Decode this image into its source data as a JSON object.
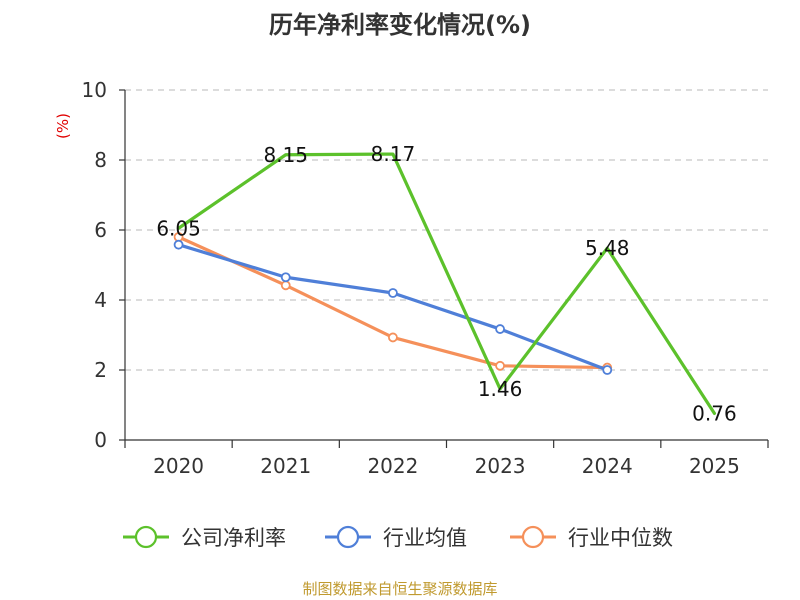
{
  "chart_data": {
    "type": "line",
    "title": "历年净利率变化情况(%)",
    "ylabel": "(%)",
    "categories": [
      "2020",
      "2021",
      "2022",
      "2023",
      "2024",
      "2025"
    ],
    "ylim": [
      0,
      10
    ],
    "yticks": [
      "0",
      "2",
      "4",
      "6",
      "8",
      "10"
    ],
    "grid": true,
    "legend_position": "bottom",
    "series": [
      {
        "name": "公司净利率",
        "color": "#5cc12b",
        "values": [
          6.05,
          8.15,
          8.17,
          1.46,
          5.48,
          0.76
        ],
        "labels": [
          "6.05",
          "8.15",
          "8.17",
          "1.46",
          "5.48",
          "0.76"
        ],
        "show_points": false
      },
      {
        "name": "行业均值",
        "color": "#4f7fd8",
        "values": [
          5.58,
          4.65,
          4.2,
          3.17,
          2.0,
          null
        ],
        "show_points": true
      },
      {
        "name": "行业中位数",
        "color": "#f5905a",
        "values": [
          5.8,
          4.42,
          2.93,
          2.12,
          2.07,
          null
        ],
        "show_points": true
      }
    ]
  },
  "source": "制图数据来自恒生聚源数据库"
}
